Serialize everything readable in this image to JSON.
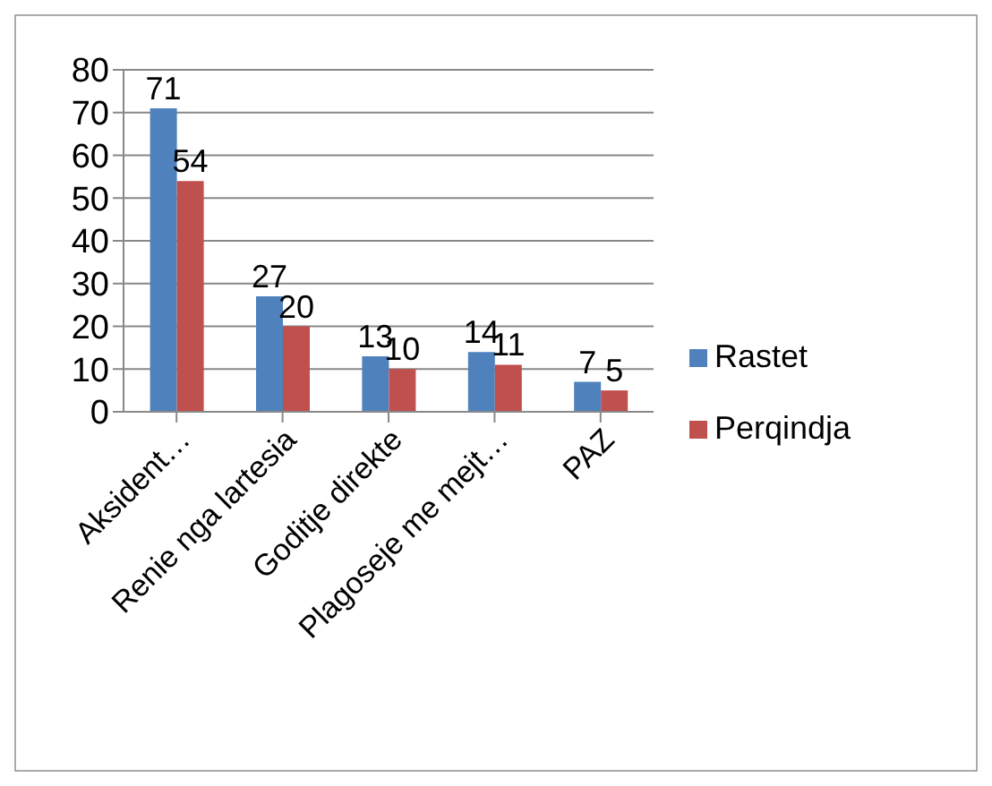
{
  "chart_data": {
    "type": "bar",
    "categories": [
      "Aksident…",
      "Renie nga lartesia",
      "Goditje direkte",
      "Plagoseje me mejt…",
      "PAZ"
    ],
    "series": [
      {
        "name": "Rastet",
        "color": "#4f81bd",
        "values": [
          71,
          27,
          13,
          14,
          7
        ]
      },
      {
        "name": "Perqindja",
        "color": "#c0504d",
        "values": [
          54,
          20,
          10,
          11,
          5
        ]
      }
    ],
    "ylim": [
      0,
      80
    ],
    "yticks": [
      0,
      10,
      20,
      30,
      40,
      50,
      60,
      70,
      80
    ],
    "grid": "y",
    "legend": "right",
    "data_labels": true
  }
}
